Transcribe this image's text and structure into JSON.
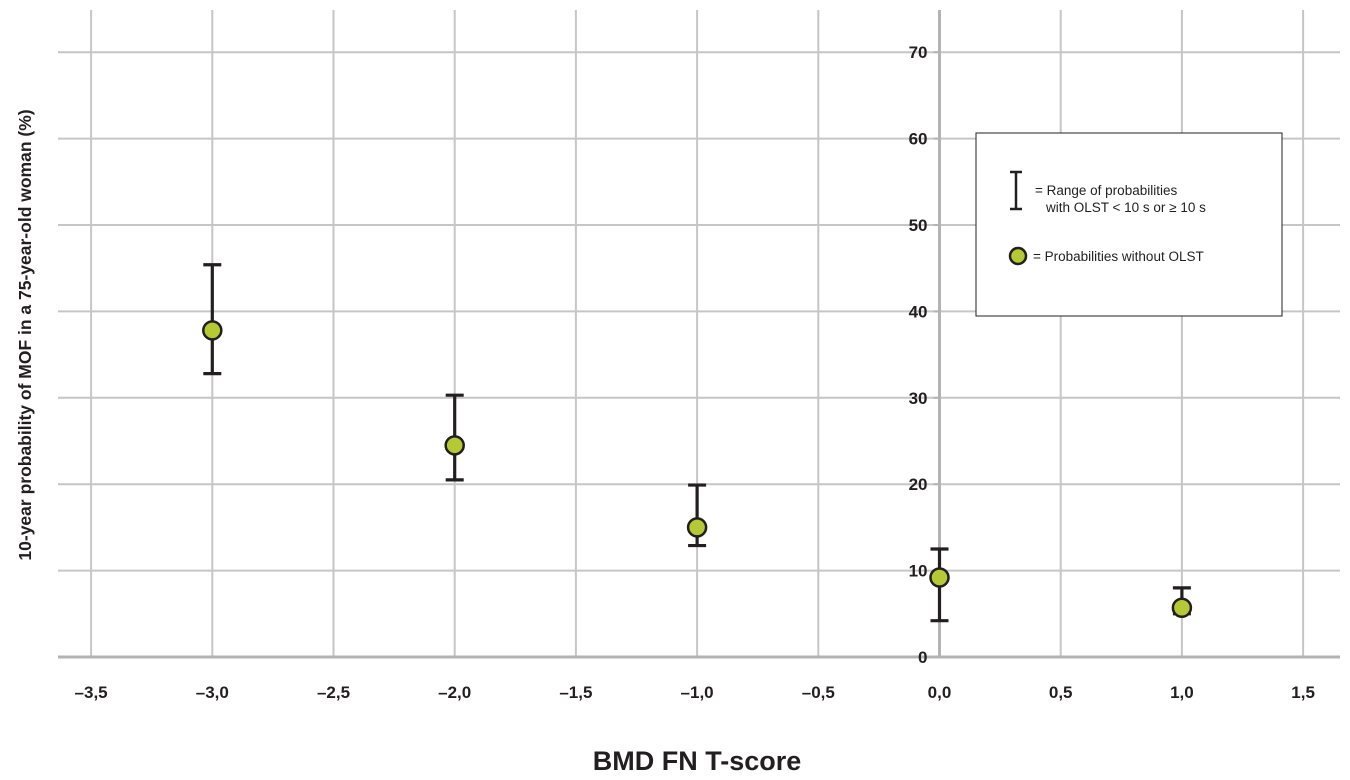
{
  "chart_data": {
    "type": "scatter",
    "title": "",
    "xlabel": "BMD FN T-score",
    "ylabel": "10-year probability of MOF in a 75-year-old woman (%)",
    "xlim": [
      -4.0,
      1.7
    ],
    "ylim": [
      0,
      74
    ],
    "x_ticks": [
      -3.5,
      -3.0,
      -2.5,
      -2.0,
      -1.5,
      -1.0,
      -0.5,
      0.0,
      0.5,
      1.0,
      1.5
    ],
    "x_tick_labels": [
      "–3,5",
      "–3,0",
      "–2,5",
      "–2,0",
      "–1,5",
      "–1,0",
      "–0,5",
      "0,0",
      "0,5",
      "1,0",
      "1,5"
    ],
    "y_ticks": [
      0,
      10,
      20,
      30,
      40,
      50,
      60,
      70
    ],
    "y_tick_labels": [
      "0",
      "10",
      "20",
      "30",
      "40",
      "50",
      "60",
      "70"
    ],
    "y_axis_position_x": 0.0,
    "grid": true,
    "marker_color": "#b5c934",
    "line_color": "#231f20",
    "grid_color": "#c6c6c6",
    "series": [
      {
        "name": "Probabilities without OLST",
        "points": [
          {
            "x": -3.0,
            "y": 37.8,
            "low": 32.8,
            "high": 45.4
          },
          {
            "x": -2.0,
            "y": 24.5,
            "low": 20.5,
            "high": 30.3
          },
          {
            "x": -1.0,
            "y": 15.0,
            "low": 12.9,
            "high": 19.9
          },
          {
            "x": 0.0,
            "y": 9.2,
            "low": 4.2,
            "high": 12.5
          },
          {
            "x": 1.0,
            "y": 5.7,
            "low": 5.0,
            "high": 8.0
          }
        ]
      }
    ],
    "legend": {
      "position": "top-right",
      "range_line1": "= Range of probabilities",
      "range_line2": "with OLST < 10 s or ≥ 10 s",
      "point_label": "= Probabilities without OLST"
    }
  }
}
